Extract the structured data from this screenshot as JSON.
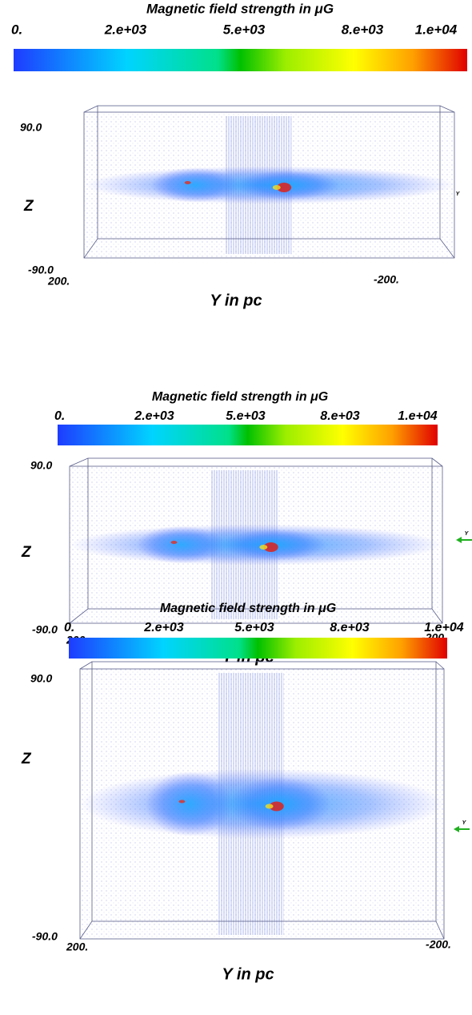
{
  "panels": [
    {
      "colorbar_title": "Magnetic field strength in μG",
      "colorbar_ticks": [
        "0.",
        "2.e+03",
        "5.e+03",
        "8.e+03",
        "1.e+04"
      ],
      "z_top": "90.0",
      "z_label": "Z",
      "z_bottom": "-90.0",
      "y_left": "200.",
      "y_right": "-200.",
      "y_label": "Y in pc",
      "axis_marker": "Y"
    },
    {
      "colorbar_title": "Magnetic field strength in μG",
      "colorbar_ticks": [
        "0.",
        "2.e+03",
        "5.e+03",
        "8.e+03",
        "1.e+04"
      ],
      "z_top": "90.0",
      "z_label": "Z",
      "z_bottom": "-90.0",
      "y_left": "200.",
      "y_right": "-200.",
      "y_label": "Y in pc",
      "axis_marker": "Y"
    },
    {
      "colorbar_title": "Magnetic field strength in μG",
      "colorbar_ticks": [
        "0.",
        "2.e+03",
        "5.e+03",
        "8.e+03",
        "1.e+04"
      ],
      "z_top": "90.0",
      "z_label": "Z",
      "z_bottom": "-90.0",
      "y_left": "200.",
      "y_right": "-200.",
      "y_label": "Y in pc",
      "axis_marker": "Y"
    }
  ]
}
